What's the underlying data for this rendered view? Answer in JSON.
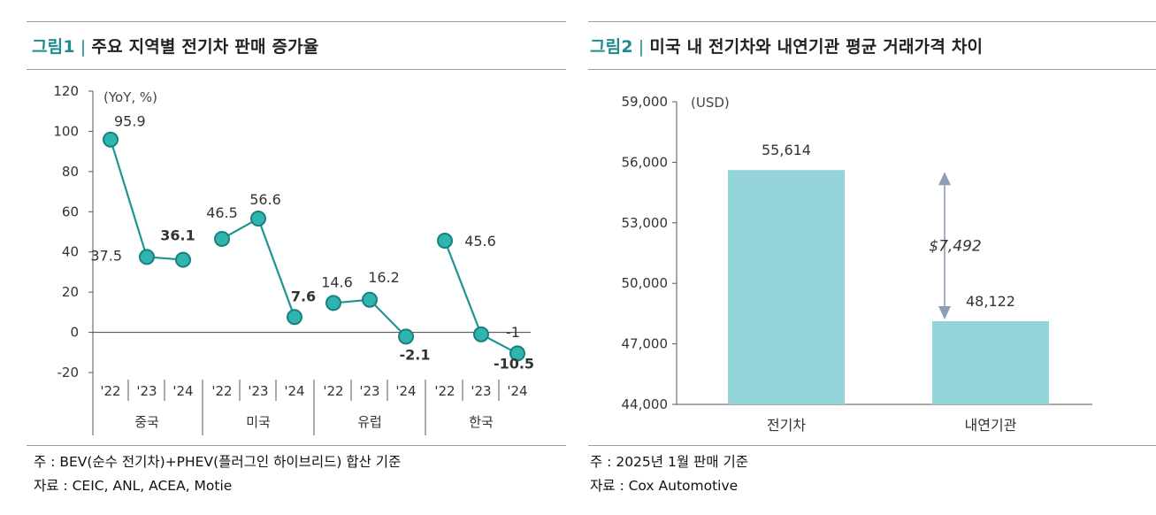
{
  "figure1": {
    "label": "그림1",
    "separator": "|",
    "title": "주요 지역별 전기차 판매 증가율",
    "unit": "(YoY, %)",
    "note": "주 : BEV(순수 전기차)+PHEV(플러그인 하이브리드) 합산 기준",
    "source": "자료 : CEIC, ANL, ACEA, Motie"
  },
  "figure2": {
    "label": "그림2",
    "separator": "|",
    "title": "미국 내 전기차와 내연기관 평균 거래가격 차이",
    "unit": "(USD)",
    "note": "주 : 2025년 1월 판매 기준",
    "source": "자료 : Cox Automotive",
    "gap_label": "$7,492"
  },
  "chart_data": [
    {
      "type": "line",
      "title": "주요 지역별 전기차 판매 증가율",
      "ylabel": "(YoY, %)",
      "ylim": [
        -20,
        120
      ],
      "yticks": [
        -20,
        0,
        20,
        40,
        60,
        80,
        100,
        120
      ],
      "ytick_labels": [
        "-20",
        "0",
        "20",
        "40",
        "60",
        "80",
        "100",
        "120"
      ],
      "groups": [
        "중국",
        "미국",
        "유럽",
        "한국"
      ],
      "year_labels": [
        "'22",
        "'23",
        "'24"
      ],
      "series": [
        {
          "name": "중국",
          "values": [
            95.9,
            37.5,
            36.1
          ],
          "labels": [
            "95.9",
            "37.5",
            "36.1"
          ]
        },
        {
          "name": "미국",
          "values": [
            46.5,
            56.6,
            7.6
          ],
          "labels": [
            "46.5",
            "56.6",
            "7.6"
          ]
        },
        {
          "name": "유럽",
          "values": [
            14.6,
            16.2,
            -2.1
          ],
          "labels": [
            "14.6",
            "16.2",
            "-2.1"
          ]
        },
        {
          "name": "한국",
          "values": [
            45.6,
            -1,
            -10.5
          ],
          "labels": [
            "45.6",
            "-1",
            "-10.5"
          ]
        }
      ],
      "color": "#1f9494",
      "marker_color": "#2fb5ad"
    },
    {
      "type": "bar",
      "title": "미국 내 전기차와 내연기관 평균 거래가격 차이",
      "ylabel": "(USD)",
      "ylim": [
        44000,
        59000
      ],
      "yticks": [
        44000,
        47000,
        50000,
        53000,
        56000,
        59000
      ],
      "ytick_labels": [
        "44,000",
        "47,000",
        "50,000",
        "53,000",
        "56,000",
        "59,000"
      ],
      "categories": [
        "전기차",
        "내연기관"
      ],
      "values": [
        55614,
        48122
      ],
      "value_labels": [
        "55,614",
        "48,122"
      ],
      "difference": 7492,
      "color": "#93d3d9",
      "arrow_color": "#8d9db5"
    }
  ]
}
